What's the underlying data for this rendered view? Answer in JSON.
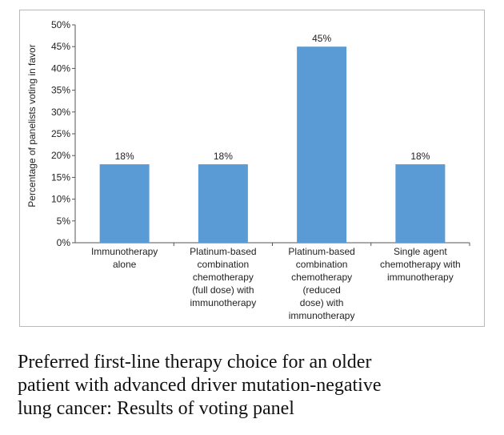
{
  "chart_data": {
    "type": "bar",
    "categories": [
      [
        "Immunotherapy",
        "alone"
      ],
      [
        "Platinum-based",
        "combination",
        "chemotherapy",
        "(full dose) with",
        "immunotherapy"
      ],
      [
        "Platinum-based",
        "combination",
        "chemotherapy",
        "(reduced",
        "dose) with",
        "immunotherapy"
      ],
      [
        "Single agent",
        "chemotherapy with",
        "immunotherapy"
      ]
    ],
    "values": [
      18,
      18,
      45,
      18
    ],
    "data_labels": [
      "18%",
      "18%",
      "45%",
      "18%"
    ],
    "ylabel": "Percentage of panelists voting in favor",
    "xlabel": "",
    "ylim": [
      0,
      50
    ],
    "yticks": [
      "0%",
      "5%",
      "10%",
      "15%",
      "20%",
      "25%",
      "30%",
      "35%",
      "40%",
      "45%",
      "50%"
    ],
    "bar_color": "#5b9bd5",
    "grid": false,
    "legend": "none"
  },
  "caption": {
    "line1": "Preferred first-line therapy choice for an older",
    "line2": "patient with advanced driver mutation-negative",
    "line3": "lung cancer: Results of voting panel"
  }
}
